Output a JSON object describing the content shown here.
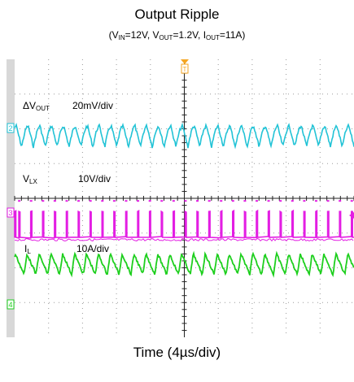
{
  "title": "Output Ripple",
  "subtitle": {
    "vin_prefix": "(V",
    "vin_sub": "IN",
    "vin_val": "=12V, V",
    "vout_sub": "OUT",
    "vout_val": "=1.2V, I",
    "iout_sub": "OUT",
    "iout_val": "=11A)"
  },
  "xlabel": "Time (4µs/div)",
  "colors": {
    "vout": "#22c3d6",
    "vlx": "#e31ee3",
    "il": "#1ecf1e",
    "grid": "#9a9a9a",
    "axis": "#222222",
    "trigger": "#f5a623",
    "bezel": "#d8d8d8"
  },
  "chart_data": {
    "type": "line",
    "time_per_div_us": 4,
    "divisions": 10,
    "switching_period_us": 1.4,
    "series": [
      {
        "name_main": "ΔV",
        "name_sub": "OUT",
        "scale": "20mV/div",
        "channel": "2",
        "shape": "ripple-sawtooth",
        "peak_to_peak_mV": 12
      },
      {
        "name_main": "V",
        "name_sub": "LX",
        "scale": "10V/div",
        "channel": "3",
        "shape": "pulse",
        "low_V": 0,
        "high_V": 12,
        "duty": 0.1
      },
      {
        "name_main": "I",
        "name_sub": "L",
        "scale": "10A/div",
        "channel": "4",
        "shape": "triangle",
        "avg_A": 11,
        "ripple_A": 5
      }
    ]
  },
  "markers": {
    "ch2": "2",
    "ch3": "3",
    "ch4": "4",
    "trigger": "T"
  }
}
